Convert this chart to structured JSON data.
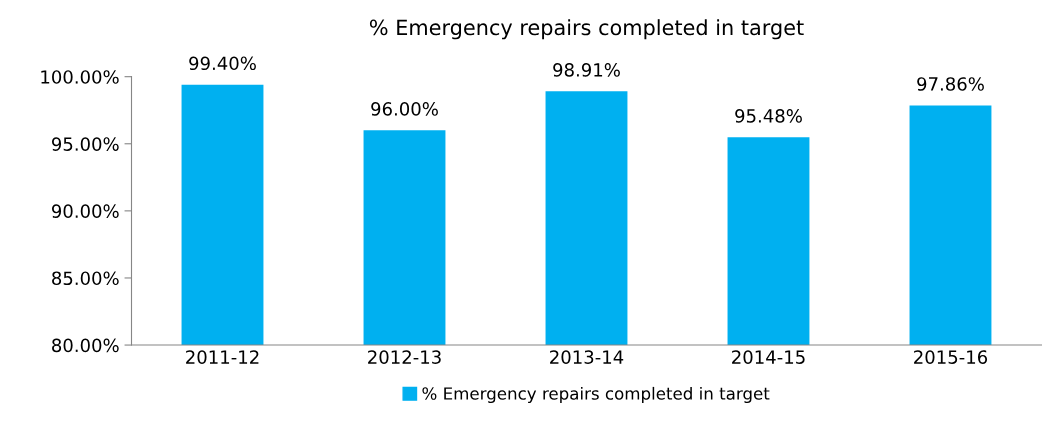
{
  "chart_data": {
    "type": "bar",
    "title": "% Emergency repairs completed in target",
    "categories": [
      "2011-12",
      "2012-13",
      "2013-14",
      "2014-15",
      "2015-16"
    ],
    "series": [
      {
        "name": "% Emergency repairs completed in target",
        "color": "#00b0f0",
        "values": [
          99.4,
          96.0,
          98.91,
          95.48,
          97.86
        ],
        "value_labels": [
          "99.40%",
          "96.00%",
          "98.91%",
          "95.48%",
          "97.86%"
        ]
      }
    ],
    "ylim": [
      80,
      100
    ],
    "yticks": [
      {
        "value": 80,
        "label": "80.00%"
      },
      {
        "value": 85,
        "label": "85.00%"
      },
      {
        "value": 90,
        "label": "90.00%"
      },
      {
        "value": 95,
        "label": "95.00%"
      },
      {
        "value": 100,
        "label": "100.00%"
      }
    ],
    "grid": false,
    "legend": "bottom"
  }
}
